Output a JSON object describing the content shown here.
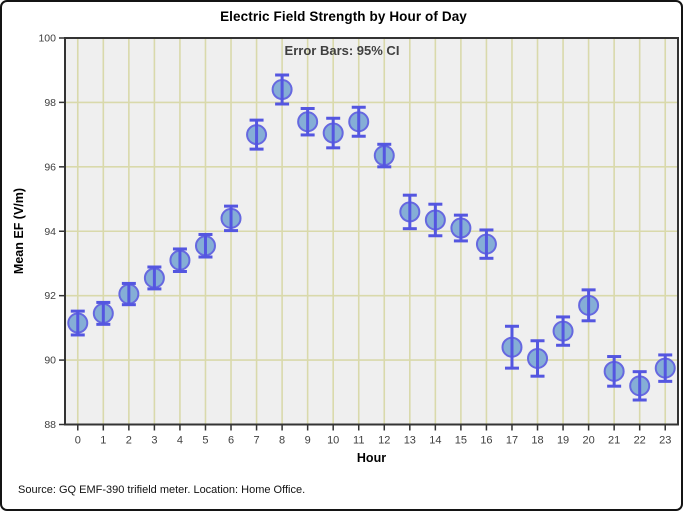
{
  "chart_data": {
    "type": "scatter",
    "title": "Electric Field Strength by Hour of Day",
    "annotation": "Error Bars: 95% CI",
    "xlabel": "Hour",
    "ylabel": "Mean EF (V/m)",
    "source_note": "Source: GQ EMF-390 trifield meter. Location: Home Office.",
    "x": [
      0,
      1,
      2,
      3,
      4,
      5,
      6,
      7,
      8,
      9,
      10,
      11,
      12,
      13,
      14,
      15,
      16,
      17,
      18,
      19,
      20,
      21,
      22,
      23
    ],
    "series": [
      {
        "name": "Mean EF",
        "values": [
          91.15,
          91.45,
          92.05,
          92.55,
          93.1,
          93.55,
          94.4,
          97.0,
          98.4,
          97.4,
          97.05,
          97.4,
          96.35,
          94.6,
          94.35,
          94.1,
          93.6,
          90.4,
          90.05,
          90.9,
          91.7,
          89.65,
          89.2,
          89.75
        ],
        "ci95": [
          0.37,
          0.34,
          0.33,
          0.34,
          0.35,
          0.35,
          0.38,
          0.45,
          0.45,
          0.41,
          0.46,
          0.45,
          0.35,
          0.52,
          0.49,
          0.4,
          0.44,
          0.65,
          0.55,
          0.44,
          0.48,
          0.46,
          0.44,
          0.41
        ]
      }
    ],
    "ylim": [
      88,
      100
    ],
    "yticks": [
      88,
      90,
      92,
      94,
      96,
      98,
      100
    ],
    "grid": true,
    "legend_position": "none",
    "colors": {
      "plot_bg": "#efefef",
      "grid": "#d9d9ab",
      "frame": "#333333",
      "tick": "#333333",
      "marker_fill": "#85aed6",
      "marker_stroke": "#6668e0",
      "error_bar": "#5456e0",
      "tick_label": "#404040",
      "annotation": "#404040",
      "title": "#000000"
    }
  }
}
